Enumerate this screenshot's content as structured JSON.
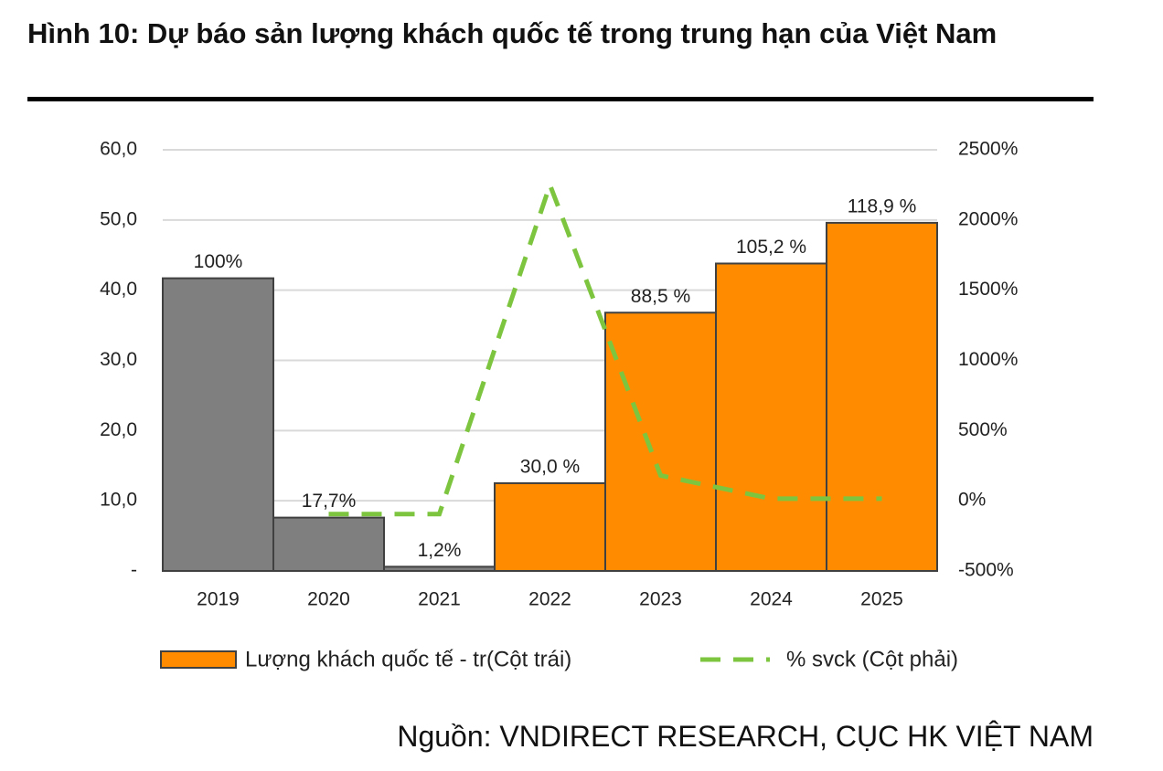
{
  "chart_data": {
    "type": "bar_line",
    "title": "Hình 10: Dự báo sản lượng khách quốc tế trong trung hạn của Việt Nam",
    "source": "Nguồn: VNDIRECT RESEARCH, CỤC HK VIỆT NAM",
    "categories": [
      "2019",
      "2020",
      "2021",
      "2022",
      "2023",
      "2024",
      "2025"
    ],
    "series": [
      {
        "name": "Lượng khách  quốc tế - tr(Cột trái)",
        "type": "bar",
        "color": "#ff8c00",
        "colors": [
          "#7f7f7f",
          "#7f7f7f",
          "#7f7f7f",
          "#ff8c00",
          "#ff8c00",
          "#ff8c00",
          "#ff8c00"
        ],
        "values": [
          41.7,
          7.6,
          0.6,
          12.5,
          36.8,
          43.8,
          49.6
        ],
        "annotations": [
          "100%",
          "17,7%",
          "1,2%",
          "30,0 %",
          "88,5 %",
          "105,2 %",
          "118,9 %"
        ]
      },
      {
        "name": "% svck (Cột phải)",
        "type": "line",
        "axis": "y2",
        "color": "#7dc53f",
        "values": [
          null,
          -95,
          -95,
          2250,
          180,
          15,
          15
        ]
      }
    ],
    "ylim": [
      0,
      60
    ],
    "yticks": [
      {
        "value": 0,
        "label": "-"
      },
      {
        "value": 10,
        "label": "10,0"
      },
      {
        "value": 20,
        "label": "20,0"
      },
      {
        "value": 30,
        "label": "30,0"
      },
      {
        "value": 40,
        "label": "40,0"
      },
      {
        "value": 50,
        "label": "50,0"
      },
      {
        "value": 60,
        "label": "60,0"
      }
    ],
    "y2lim": [
      -500,
      2500
    ],
    "y2ticks": [
      {
        "value": -500,
        "label": "-500%"
      },
      {
        "value": 0,
        "label": "0%"
      },
      {
        "value": 500,
        "label": "500%"
      },
      {
        "value": 1000,
        "label": "1000%"
      },
      {
        "value": 1500,
        "label": "1500%"
      },
      {
        "value": 2000,
        "label": "2000%"
      },
      {
        "value": 2500,
        "label": "2500%"
      }
    ],
    "grid": true
  }
}
